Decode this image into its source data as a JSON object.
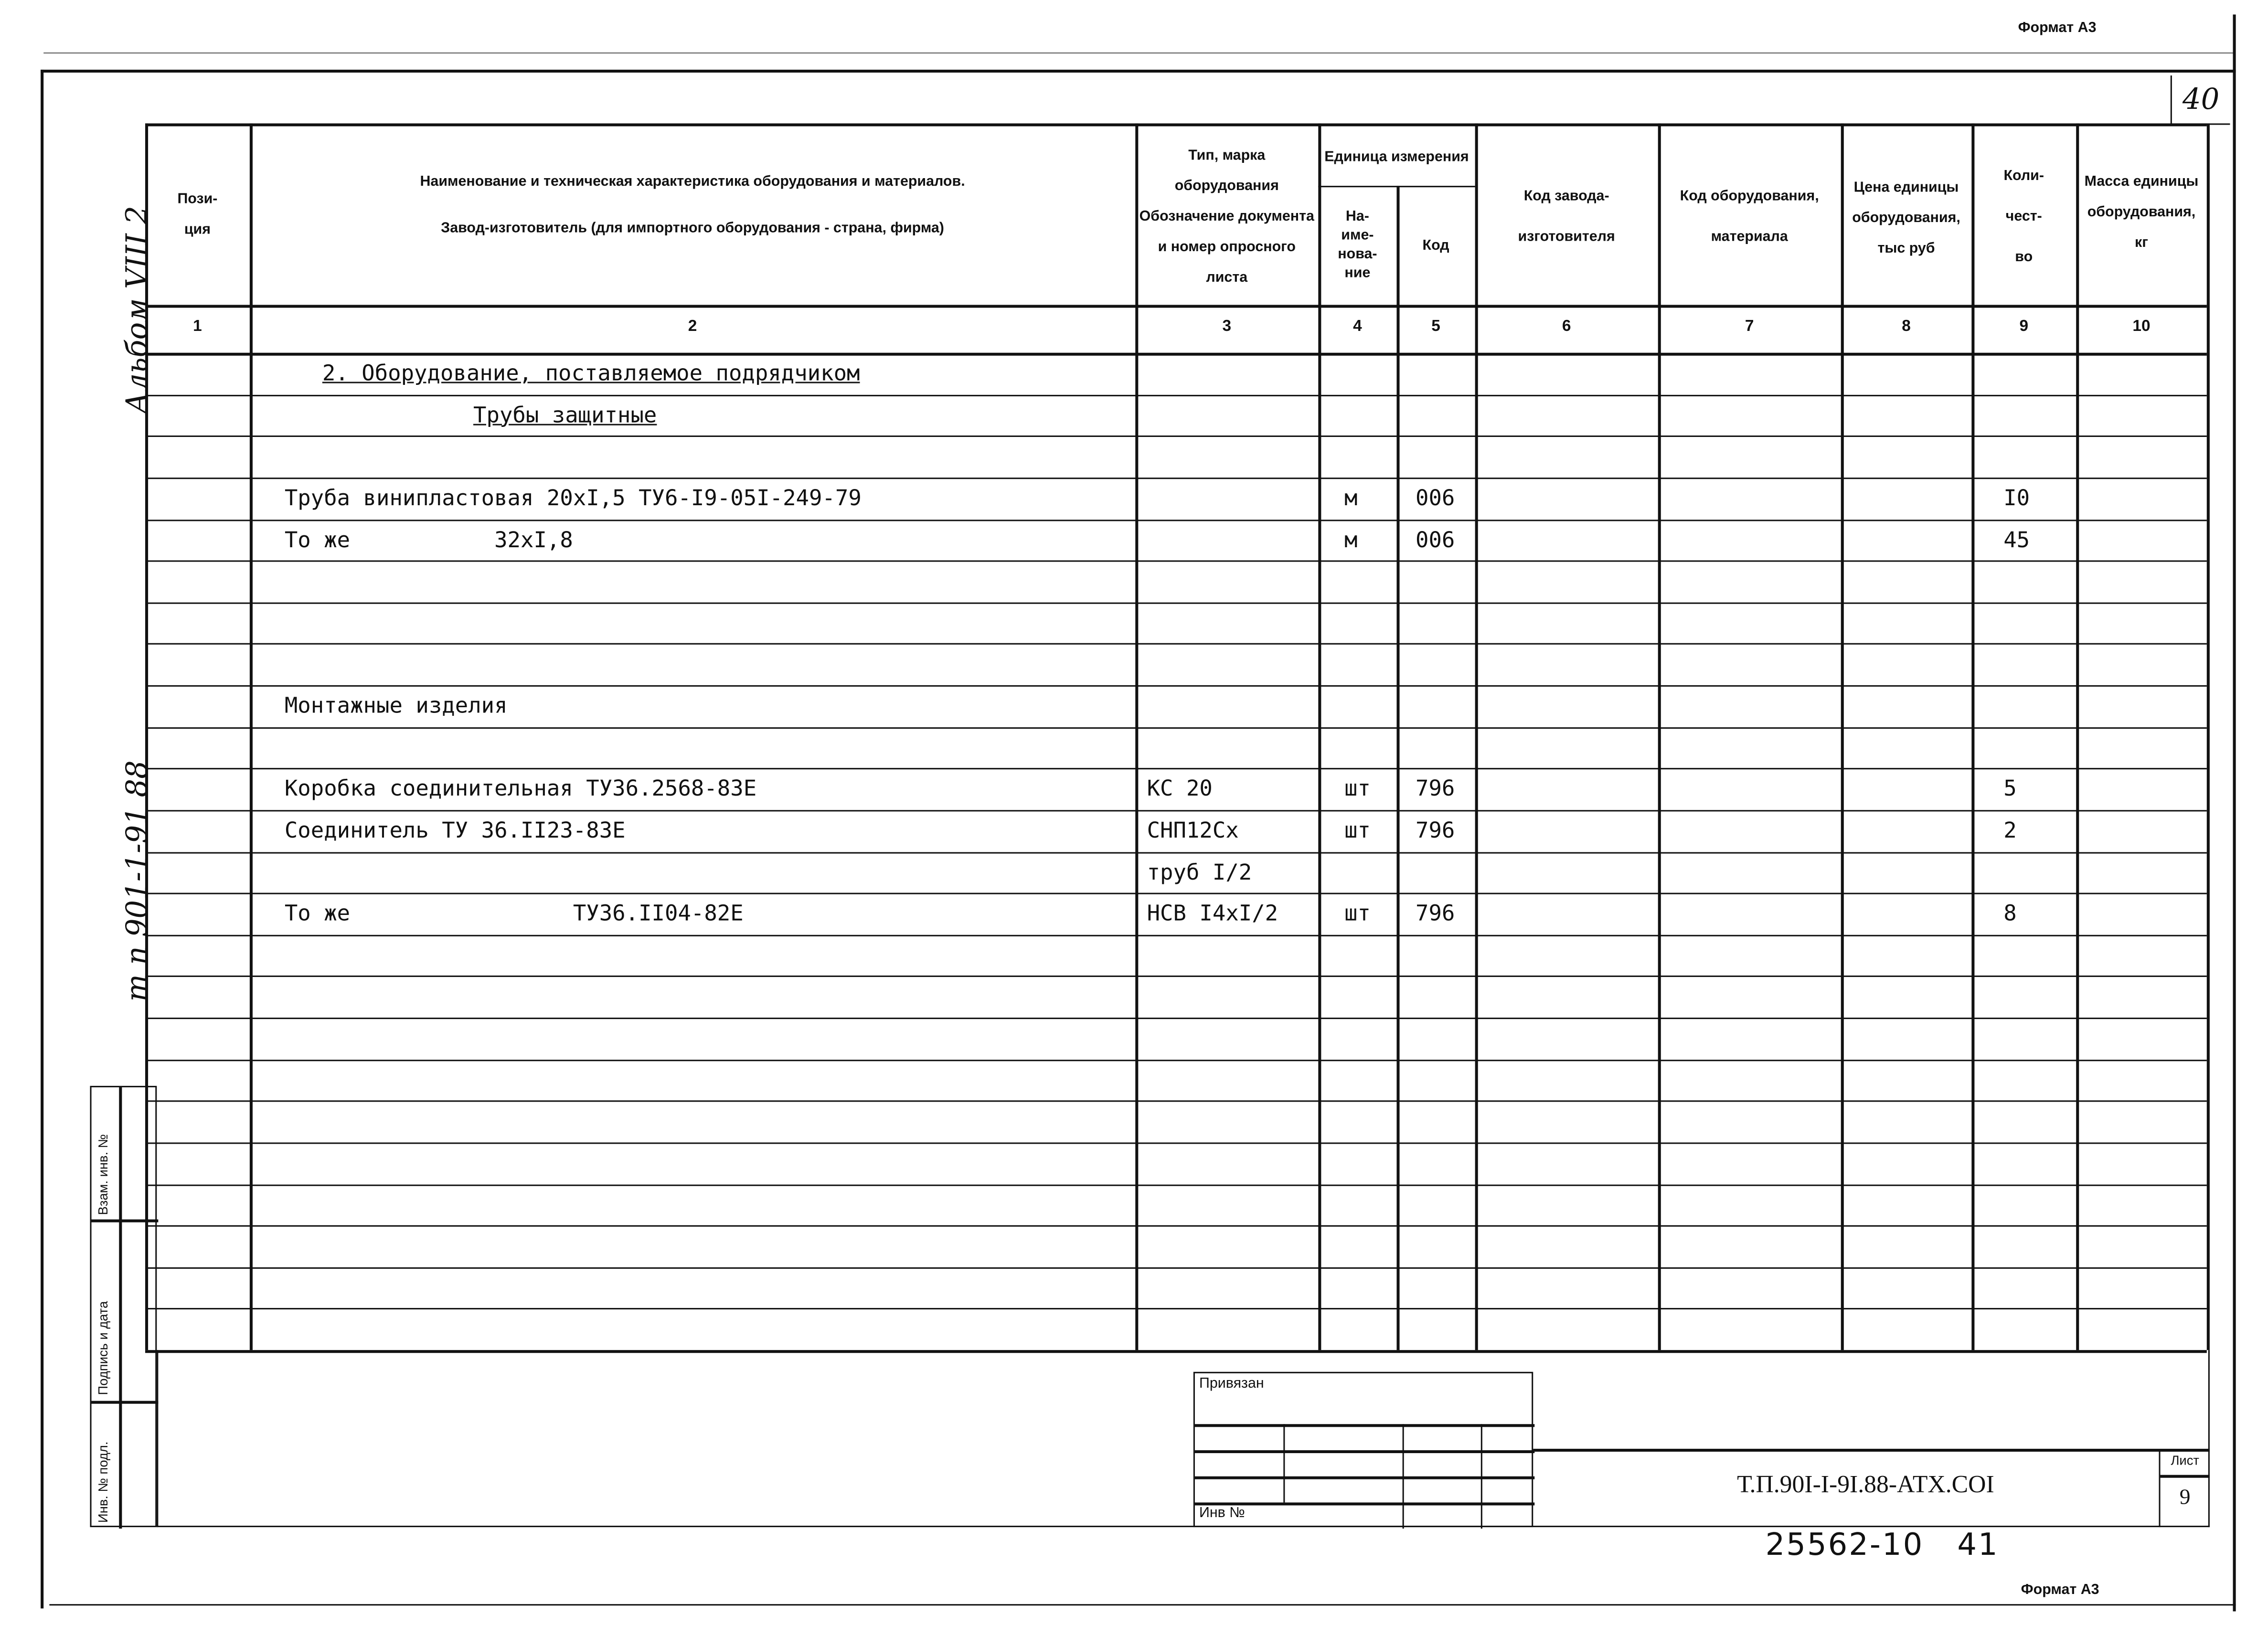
{
  "format_top": "Формат А3",
  "format_bottom": "Формат А3",
  "page_corner": "40",
  "left_margin": {
    "album": "Альбом VIII 2",
    "project": "т п 901-1-91 88"
  },
  "side_stamp": {
    "replace_inv": "Взам. инв. №",
    "signature_date": "Подпись и дата",
    "orig_inv": "Инв. № подл."
  },
  "header": {
    "c1": "Пози-\nция",
    "c2a": "Наименование и техническая характеристика оборудования и материалов.",
    "c2b": "Завод-изготовитель (для импортного оборудования - страна, фирма)",
    "c3": "Тип, марка оборудования Обозначение документа и номер опросного листа",
    "c45": "Единица измерения",
    "c4": "На-\nиме-\nнова-\nние",
    "c5": "Код",
    "c6": "Код завода-изготовителя",
    "c7": "Код оборудования, материала",
    "c8": "Цена единицы оборудования, тыс руб",
    "c9": "Коли-\nчест-\nво",
    "c10": "Масса единицы оборудования, кг"
  },
  "column_numbers": [
    "1",
    "2",
    "3",
    "4",
    "5",
    "6",
    "7",
    "8",
    "9",
    "10"
  ],
  "rows": [
    {
      "name": "2. Оборудование, поставляемое подрядчиком",
      "indent": "section",
      "type": "",
      "unit": "",
      "code": "",
      "qty": ""
    },
    {
      "name": "Трубы защитные",
      "indent": "sub",
      "type": "",
      "unit": "",
      "code": "",
      "qty": ""
    },
    {
      "name": "",
      "type": "",
      "unit": "",
      "code": "",
      "qty": ""
    },
    {
      "name": "Труба винипластовая 20хI,5 ТУ6-I9-05I-249-79",
      "type": "",
      "unit": "м",
      "code": "006",
      "qty": "I0"
    },
    {
      "name": "То же           32хI,8",
      "type": "",
      "unit": "м",
      "code": "006",
      "qty": "45"
    },
    {
      "name": "",
      "type": "",
      "unit": "",
      "code": "",
      "qty": ""
    },
    {
      "name": "",
      "type": "",
      "unit": "",
      "code": "",
      "qty": ""
    },
    {
      "name": "",
      "type": "",
      "unit": "",
      "code": "",
      "qty": ""
    },
    {
      "name": "Монтажные изделия",
      "type": "",
      "unit": "",
      "code": "",
      "qty": ""
    },
    {
      "name": "",
      "type": "",
      "unit": "",
      "code": "",
      "qty": ""
    },
    {
      "name": "Коробка соединительная ТУ36.2568-83Е",
      "type": "КС 20",
      "unit": "шт",
      "code": "796",
      "qty": "5"
    },
    {
      "name": "Соединитель ТУ 36.II23-83Е",
      "type": "СНП12Сх",
      "unit": "шт",
      "code": "796",
      "qty": "2"
    },
    {
      "name": "",
      "type": "труб I/2",
      "unit": "",
      "code": "",
      "qty": ""
    },
    {
      "name": "То же                 ТУ36.II04-82Е",
      "type": "НСВ I4хI/2",
      "unit": "шт",
      "code": "796",
      "qty": "8"
    },
    {
      "name": "",
      "type": "",
      "unit": "",
      "code": "",
      "qty": ""
    },
    {
      "name": "",
      "type": "",
      "unit": "",
      "code": "",
      "qty": ""
    },
    {
      "name": "",
      "type": "",
      "unit": "",
      "code": "",
      "qty": ""
    },
    {
      "name": "",
      "type": "",
      "unit": "",
      "code": "",
      "qty": ""
    },
    {
      "name": "",
      "type": "",
      "unit": "",
      "code": "",
      "qty": ""
    },
    {
      "name": "",
      "type": "",
      "unit": "",
      "code": "",
      "qty": ""
    },
    {
      "name": "",
      "type": "",
      "unit": "",
      "code": "",
      "qty": ""
    },
    {
      "name": "",
      "type": "",
      "unit": "",
      "code": "",
      "qty": ""
    },
    {
      "name": "",
      "type": "",
      "unit": "",
      "code": "",
      "qty": ""
    },
    {
      "name": "",
      "type": "",
      "unit": "",
      "code": "",
      "qty": ""
    }
  ],
  "title_block": {
    "attached": "Привязан",
    "inv_no": "Инв №",
    "doc_code": "Т.П.90I-I-9I.88-АТХ.СОI",
    "sheet_label": "Лист",
    "sheet_no": "9",
    "archive_no": "25562-10   41"
  }
}
